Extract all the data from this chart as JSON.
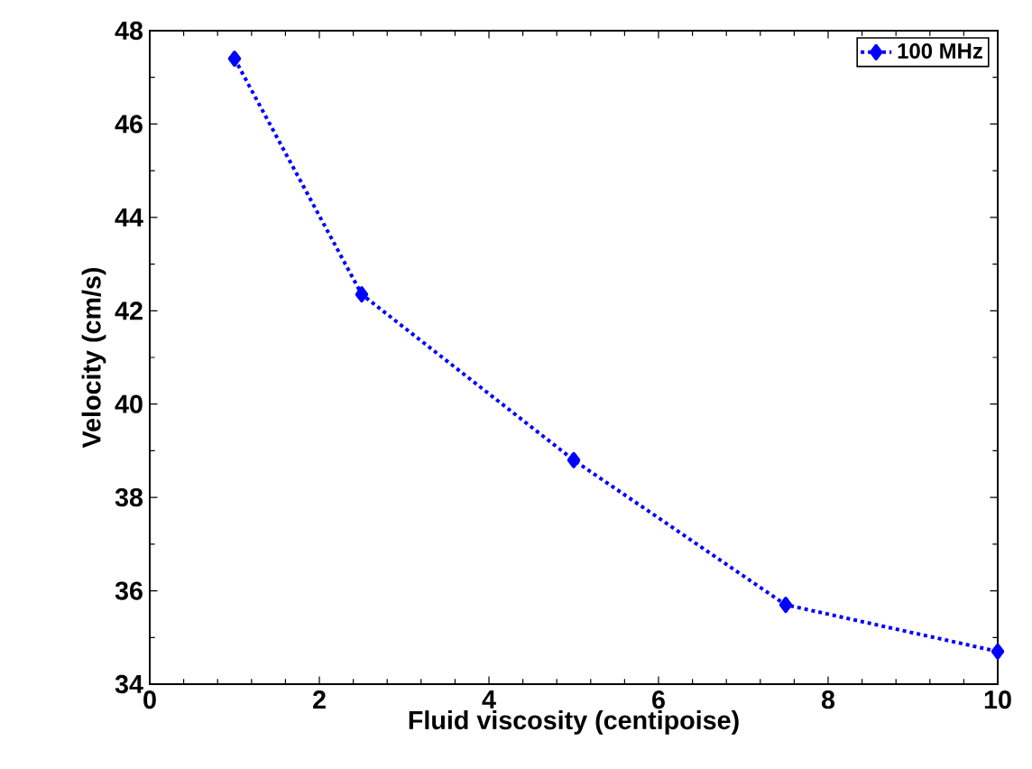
{
  "chart_data": {
    "type": "line",
    "xlabel": "Fluid viscosity (centipoise)",
    "ylabel": "Velocity (cm/s)",
    "x": [
      1,
      2.5,
      5,
      7.5,
      10
    ],
    "series": [
      {
        "name": "100 MHz",
        "color": "#0000ff",
        "values": [
          47.4,
          42.35,
          38.8,
          35.7,
          34.7
        ]
      }
    ],
    "xlim": [
      0,
      10
    ],
    "ylim": [
      34,
      48
    ],
    "xticks": [
      0,
      2,
      4,
      6,
      8,
      10
    ],
    "yticks": [
      34,
      36,
      38,
      40,
      42,
      44,
      46,
      48
    ],
    "grid": false,
    "legend": "top right",
    "marker": "diamond",
    "line_style": "dotted"
  }
}
